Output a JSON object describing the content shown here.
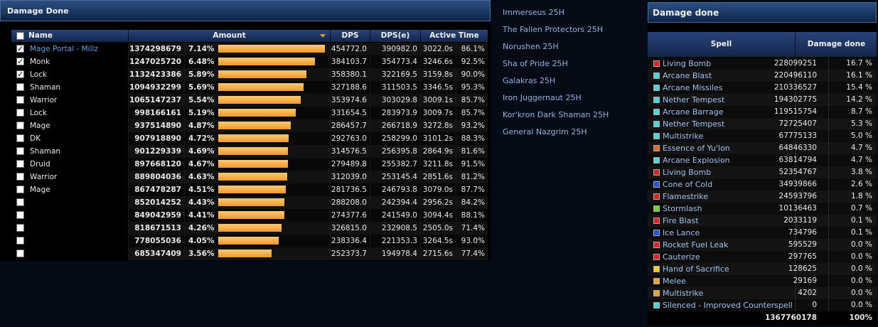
{
  "left_window": {
    "title": "Damage Done",
    "columns": {
      "name": "Name",
      "amount": "Amount",
      "dps": "DPS",
      "dpse": "DPS(e)",
      "active_time": "Active Time"
    },
    "rows": [
      {
        "name": "Mage Portal - Millz",
        "amount": "1374298679",
        "pct": "7.14%",
        "dps": "454772.0",
        "dpse": "390982.0",
        "time": "3022.0s",
        "tpct": "86.1%",
        "checked": true,
        "bar": 1.0
      },
      {
        "name": "Monk",
        "amount": "1247025720",
        "pct": "6.48%",
        "dps": "384103.7",
        "dpse": "354773.4",
        "time": "3246.6s",
        "tpct": "92.5%",
        "checked": true,
        "bar": 0.907
      },
      {
        "name": "Lock",
        "amount": "1132423386",
        "pct": "5.89%",
        "dps": "358380.1",
        "dpse": "322169.5",
        "time": "3159.8s",
        "tpct": "90.0%",
        "checked": true,
        "bar": 0.824
      },
      {
        "name": "Shaman",
        "amount": "1094932299",
        "pct": "5.69%",
        "dps": "327188.6",
        "dpse": "311503.5",
        "time": "3346.5s",
        "tpct": "95.3%",
        "checked": false,
        "bar": 0.797
      },
      {
        "name": "Warrior",
        "amount": "1065147237",
        "pct": "5.54%",
        "dps": "353974.6",
        "dpse": "303029.8",
        "time": "3009.1s",
        "tpct": "85.7%",
        "checked": false,
        "bar": 0.775
      },
      {
        "name": "Lock",
        "amount": "998166161",
        "pct": "5.19%",
        "dps": "331654.5",
        "dpse": "283973.9",
        "time": "3009.7s",
        "tpct": "85.7%",
        "checked": false,
        "bar": 0.726
      },
      {
        "name": "Mage",
        "amount": "937514890",
        "pct": "4.87%",
        "dps": "286457.7",
        "dpse": "266718.9",
        "time": "3272.8s",
        "tpct": "93.2%",
        "checked": false,
        "bar": 0.682
      },
      {
        "name": "DK",
        "amount": "907918890",
        "pct": "4.72%",
        "dps": "292763.0",
        "dpse": "258299.0",
        "time": "3101.2s",
        "tpct": "88.3%",
        "checked": false,
        "bar": 0.661
      },
      {
        "name": "Shaman",
        "amount": "901229339",
        "pct": "4.69%",
        "dps": "314576.5",
        "dpse": "256395.8",
        "time": "2864.9s",
        "tpct": "81.6%",
        "checked": false,
        "bar": 0.656
      },
      {
        "name": "Druid",
        "amount": "897668120",
        "pct": "4.67%",
        "dps": "279489.8",
        "dpse": "255382.7",
        "time": "3211.8s",
        "tpct": "91.5%",
        "checked": false,
        "bar": 0.653
      },
      {
        "name": "Warrior",
        "amount": "889804036",
        "pct": "4.63%",
        "dps": "312039.0",
        "dpse": "253145.4",
        "time": "2851.6s",
        "tpct": "81.2%",
        "checked": false,
        "bar": 0.647
      },
      {
        "name": "Mage",
        "amount": "867478287",
        "pct": "4.51%",
        "dps": "281736.5",
        "dpse": "246793.8",
        "time": "3079.0s",
        "tpct": "87.7%",
        "checked": false,
        "bar": 0.631
      },
      {
        "name": "",
        "amount": "852014252",
        "pct": "4.43%",
        "dps": "288208.0",
        "dpse": "242394.4",
        "time": "2956.2s",
        "tpct": "84.2%",
        "checked": false,
        "bar": 0.62
      },
      {
        "name": "",
        "amount": "849042959",
        "pct": "4.41%",
        "dps": "274377.6",
        "dpse": "241549.0",
        "time": "3094.4s",
        "tpct": "88.1%",
        "checked": false,
        "bar": 0.618
      },
      {
        "name": "",
        "amount": "818671513",
        "pct": "4.26%",
        "dps": "326815.0",
        "dpse": "232908.5",
        "time": "2505.0s",
        "tpct": "71.4%",
        "checked": false,
        "bar": 0.596
      },
      {
        "name": "",
        "amount": "778055036",
        "pct": "4.05%",
        "dps": "238336.4",
        "dpse": "221353.3",
        "time": "3264.5s",
        "tpct": "93.0%",
        "checked": false,
        "bar": 0.566
      },
      {
        "name": "",
        "amount": "685347409",
        "pct": "3.56%",
        "dps": "252373.7",
        "dpse": "194978.4",
        "time": "2715.6s",
        "tpct": "77.4%",
        "checked": false,
        "bar": 0.499
      }
    ]
  },
  "boss_list": [
    "Immerseus 25H",
    "The Fallen Protectors 25H",
    "Norushen 25H",
    "Sha of Pride 25H",
    "Galakras 25H",
    "Iron Juggernaut 25H",
    "Kor'kron Dark Shaman 25H",
    "General Nazgrim 25H"
  ],
  "right_window": {
    "title": "Damage done",
    "columns": {
      "spell": "Spell",
      "damage": "Damage done"
    },
    "rows": [
      {
        "spell": "Living Bomb",
        "value": "228099251",
        "pct": "16.7 %",
        "color": "#e0202a"
      },
      {
        "spell": "Arcane Blast",
        "value": "220496110",
        "pct": "16.1 %",
        "color": "#4fd4d8"
      },
      {
        "spell": "Arcane Missiles",
        "value": "210336527",
        "pct": "15.4 %",
        "color": "#4fd4d8"
      },
      {
        "spell": "Nether Tempest",
        "value": "194302775",
        "pct": "14.2 %",
        "color": "#4fd4d8"
      },
      {
        "spell": "Arcane Barrage",
        "value": "119515754",
        "pct": "8.7 %",
        "color": "#4fd4d8"
      },
      {
        "spell": "Nether Tempest",
        "value": "72725407",
        "pct": "5.3 %",
        "color": "#4fd4d8"
      },
      {
        "spell": "Multistrike",
        "value": "67775133",
        "pct": "5.0 %",
        "color": "#4fd4d8"
      },
      {
        "spell": "Essence of Yu'lon",
        "value": "64846330",
        "pct": "4.7 %",
        "color": "#e06a20"
      },
      {
        "spell": "Arcane Explosion",
        "value": "63814794",
        "pct": "4.7 %",
        "color": "#4fd4d8"
      },
      {
        "spell": "Living Bomb",
        "value": "52354767",
        "pct": "3.8 %",
        "color": "#e0202a"
      },
      {
        "spell": "Cone of Cold",
        "value": "34939866",
        "pct": "2.6 %",
        "color": "#2050e0"
      },
      {
        "spell": "Flamestrike",
        "value": "24593796",
        "pct": "1.8 %",
        "color": "#e0202a"
      },
      {
        "spell": "Stormlash",
        "value": "10136463",
        "pct": "0.7 %",
        "color": "#7ad020"
      },
      {
        "spell": "Fire Blast",
        "value": "2033119",
        "pct": "0.1 %",
        "color": "#e0202a"
      },
      {
        "spell": "Ice Lance",
        "value": "734796",
        "pct": "0.1 %",
        "color": "#2050e0"
      },
      {
        "spell": "Rocket Fuel Leak",
        "value": "595529",
        "pct": "0.0 %",
        "color": "#e0202a"
      },
      {
        "spell": "Cauterize",
        "value": "297765",
        "pct": "0.0 %",
        "color": "#e0202a"
      },
      {
        "spell": "Hand of Sacrifice",
        "value": "128625",
        "pct": "0.0 %",
        "color": "#f0d020"
      },
      {
        "spell": "Melee",
        "value": "29169",
        "pct": "0.0 %",
        "color": "#f0a030"
      },
      {
        "spell": "Multistrike",
        "value": "4202",
        "pct": "0.0 %",
        "color": "#f0a030"
      },
      {
        "spell": "Silenced - Improved Counterspell",
        "value": "0",
        "pct": "0.0 %",
        "color": "#4fd4d8"
      }
    ],
    "total_value": "1367760178",
    "total_pct": "100%"
  }
}
